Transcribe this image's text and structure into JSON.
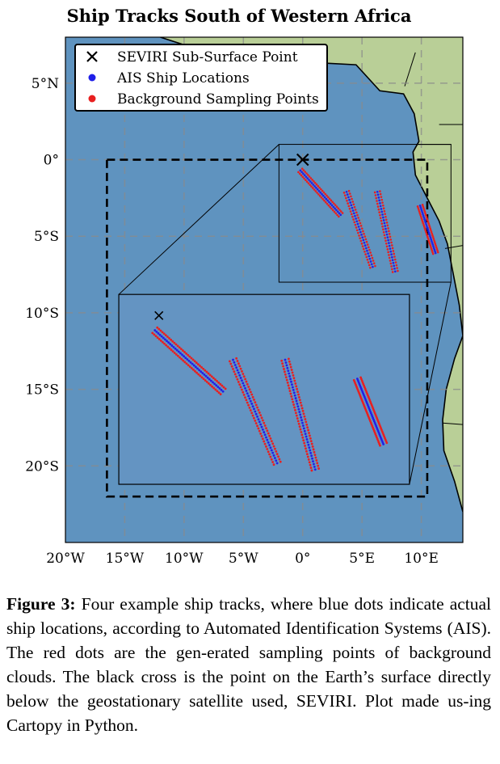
{
  "figure": {
    "title": "Ship Tracks South of Western Africa",
    "legend": [
      {
        "label": "SEVIRI Sub-Surface Point",
        "marker": "x",
        "color": "#000000"
      },
      {
        "label": "AIS Ship Locations",
        "marker": "dot",
        "color": "#1f1fe8"
      },
      {
        "label": "Background Sampling Points",
        "marker": "dot",
        "color": "#e81f1f"
      }
    ],
    "colors": {
      "ocean": "#5f93bf",
      "land": "#b9cf97",
      "coast": "#000000",
      "border": "#000000"
    }
  },
  "chart_data": {
    "type": "scatter",
    "title": "Ship Tracks South of Western Africa",
    "xlabel": "",
    "ylabel": "",
    "xlim": [
      -20,
      13.5
    ],
    "ylim": [
      -25,
      8
    ],
    "x_ticks": [
      -20,
      -15,
      -10,
      -5,
      0,
      5,
      10
    ],
    "x_tick_labels": [
      "20°W",
      "15°W",
      "10°W",
      "5°W",
      "0°",
      "5°E",
      "10°E"
    ],
    "y_ticks": [
      5,
      0,
      -5,
      -10,
      -15,
      -20
    ],
    "y_tick_labels": [
      "5°N",
      "0°",
      "5°S",
      "10°S",
      "15°S",
      "20°S"
    ],
    "grid": true,
    "legend_position": "top-left",
    "seviri_point": [
      0,
      0
    ],
    "region_box": {
      "lon": [
        -16.5,
        10.5
      ],
      "lat": [
        -22,
        0
      ]
    },
    "inset_source_box": {
      "lon": [
        -2,
        12.5
      ],
      "lat": [
        -8,
        1
      ]
    },
    "inset_display_box": {
      "lon": [
        -15.5,
        9
      ],
      "lat": [
        -21.2,
        -8.8
      ]
    },
    "tracks": [
      {
        "start": [
          -0.2,
          -0.7
        ],
        "end": [
          3.2,
          -3.6
        ]
      },
      {
        "start": [
          3.7,
          -2.1
        ],
        "end": [
          5.9,
          -7.0
        ]
      },
      {
        "start": [
          6.3,
          -2.1
        ],
        "end": [
          7.8,
          -7.3
        ]
      },
      {
        "start": [
          9.9,
          -3.0
        ],
        "end": [
          11.2,
          -6.1
        ]
      }
    ],
    "coastline": [
      [
        -12,
        8
      ],
      [
        -10,
        7.5
      ],
      [
        -8,
        6
      ],
      [
        -5,
        5.2
      ],
      [
        -2,
        4.9
      ],
      [
        0,
        5.6
      ],
      [
        2,
        6.3
      ],
      [
        4.5,
        6.2
      ],
      [
        6.5,
        4.5
      ],
      [
        8.5,
        4.3
      ],
      [
        9.4,
        3
      ],
      [
        9.8,
        1.2
      ],
      [
        9.3,
        0.5
      ],
      [
        9.5,
        -1
      ],
      [
        10.5,
        -2.5
      ],
      [
        11.5,
        -4
      ],
      [
        12.2,
        -5.5
      ],
      [
        12.7,
        -7.5
      ],
      [
        13.2,
        -9.5
      ],
      [
        13.5,
        -11.5
      ],
      [
        12.8,
        -13
      ],
      [
        12.1,
        -15
      ],
      [
        11.8,
        -17
      ],
      [
        11.9,
        -19
      ],
      [
        12.8,
        -21
      ],
      [
        13.5,
        -23
      ]
    ],
    "borders": [
      [
        [
          9.6,
          1.0
        ],
        [
          12.5,
          1.0
        ]
      ],
      [
        [
          11.5,
          2.3
        ],
        [
          13.5,
          2.3
        ]
      ],
      [
        [
          8.6,
          4.8
        ],
        [
          9.5,
          7
        ]
      ],
      [
        [
          12.0,
          -5.8
        ],
        [
          13.5,
          -5.6
        ]
      ],
      [
        [
          11.8,
          -17.2
        ],
        [
          13.5,
          -17.3
        ]
      ]
    ]
  },
  "caption": {
    "label": "Figure 3:",
    "lines": [
      "Four example ship tracks, where blue dots",
      "indicate actual ship locations, according to Automated",
      "Identification Systems (AIS). The red dots are the gen-",
      "erated sampling points of background clouds. The black",
      "cross is the point on the Earth’s surface directly below",
      "the geostationary satellite used, SEVIRI. Plot made us-",
      "ing Cartopy in Python."
    ]
  }
}
